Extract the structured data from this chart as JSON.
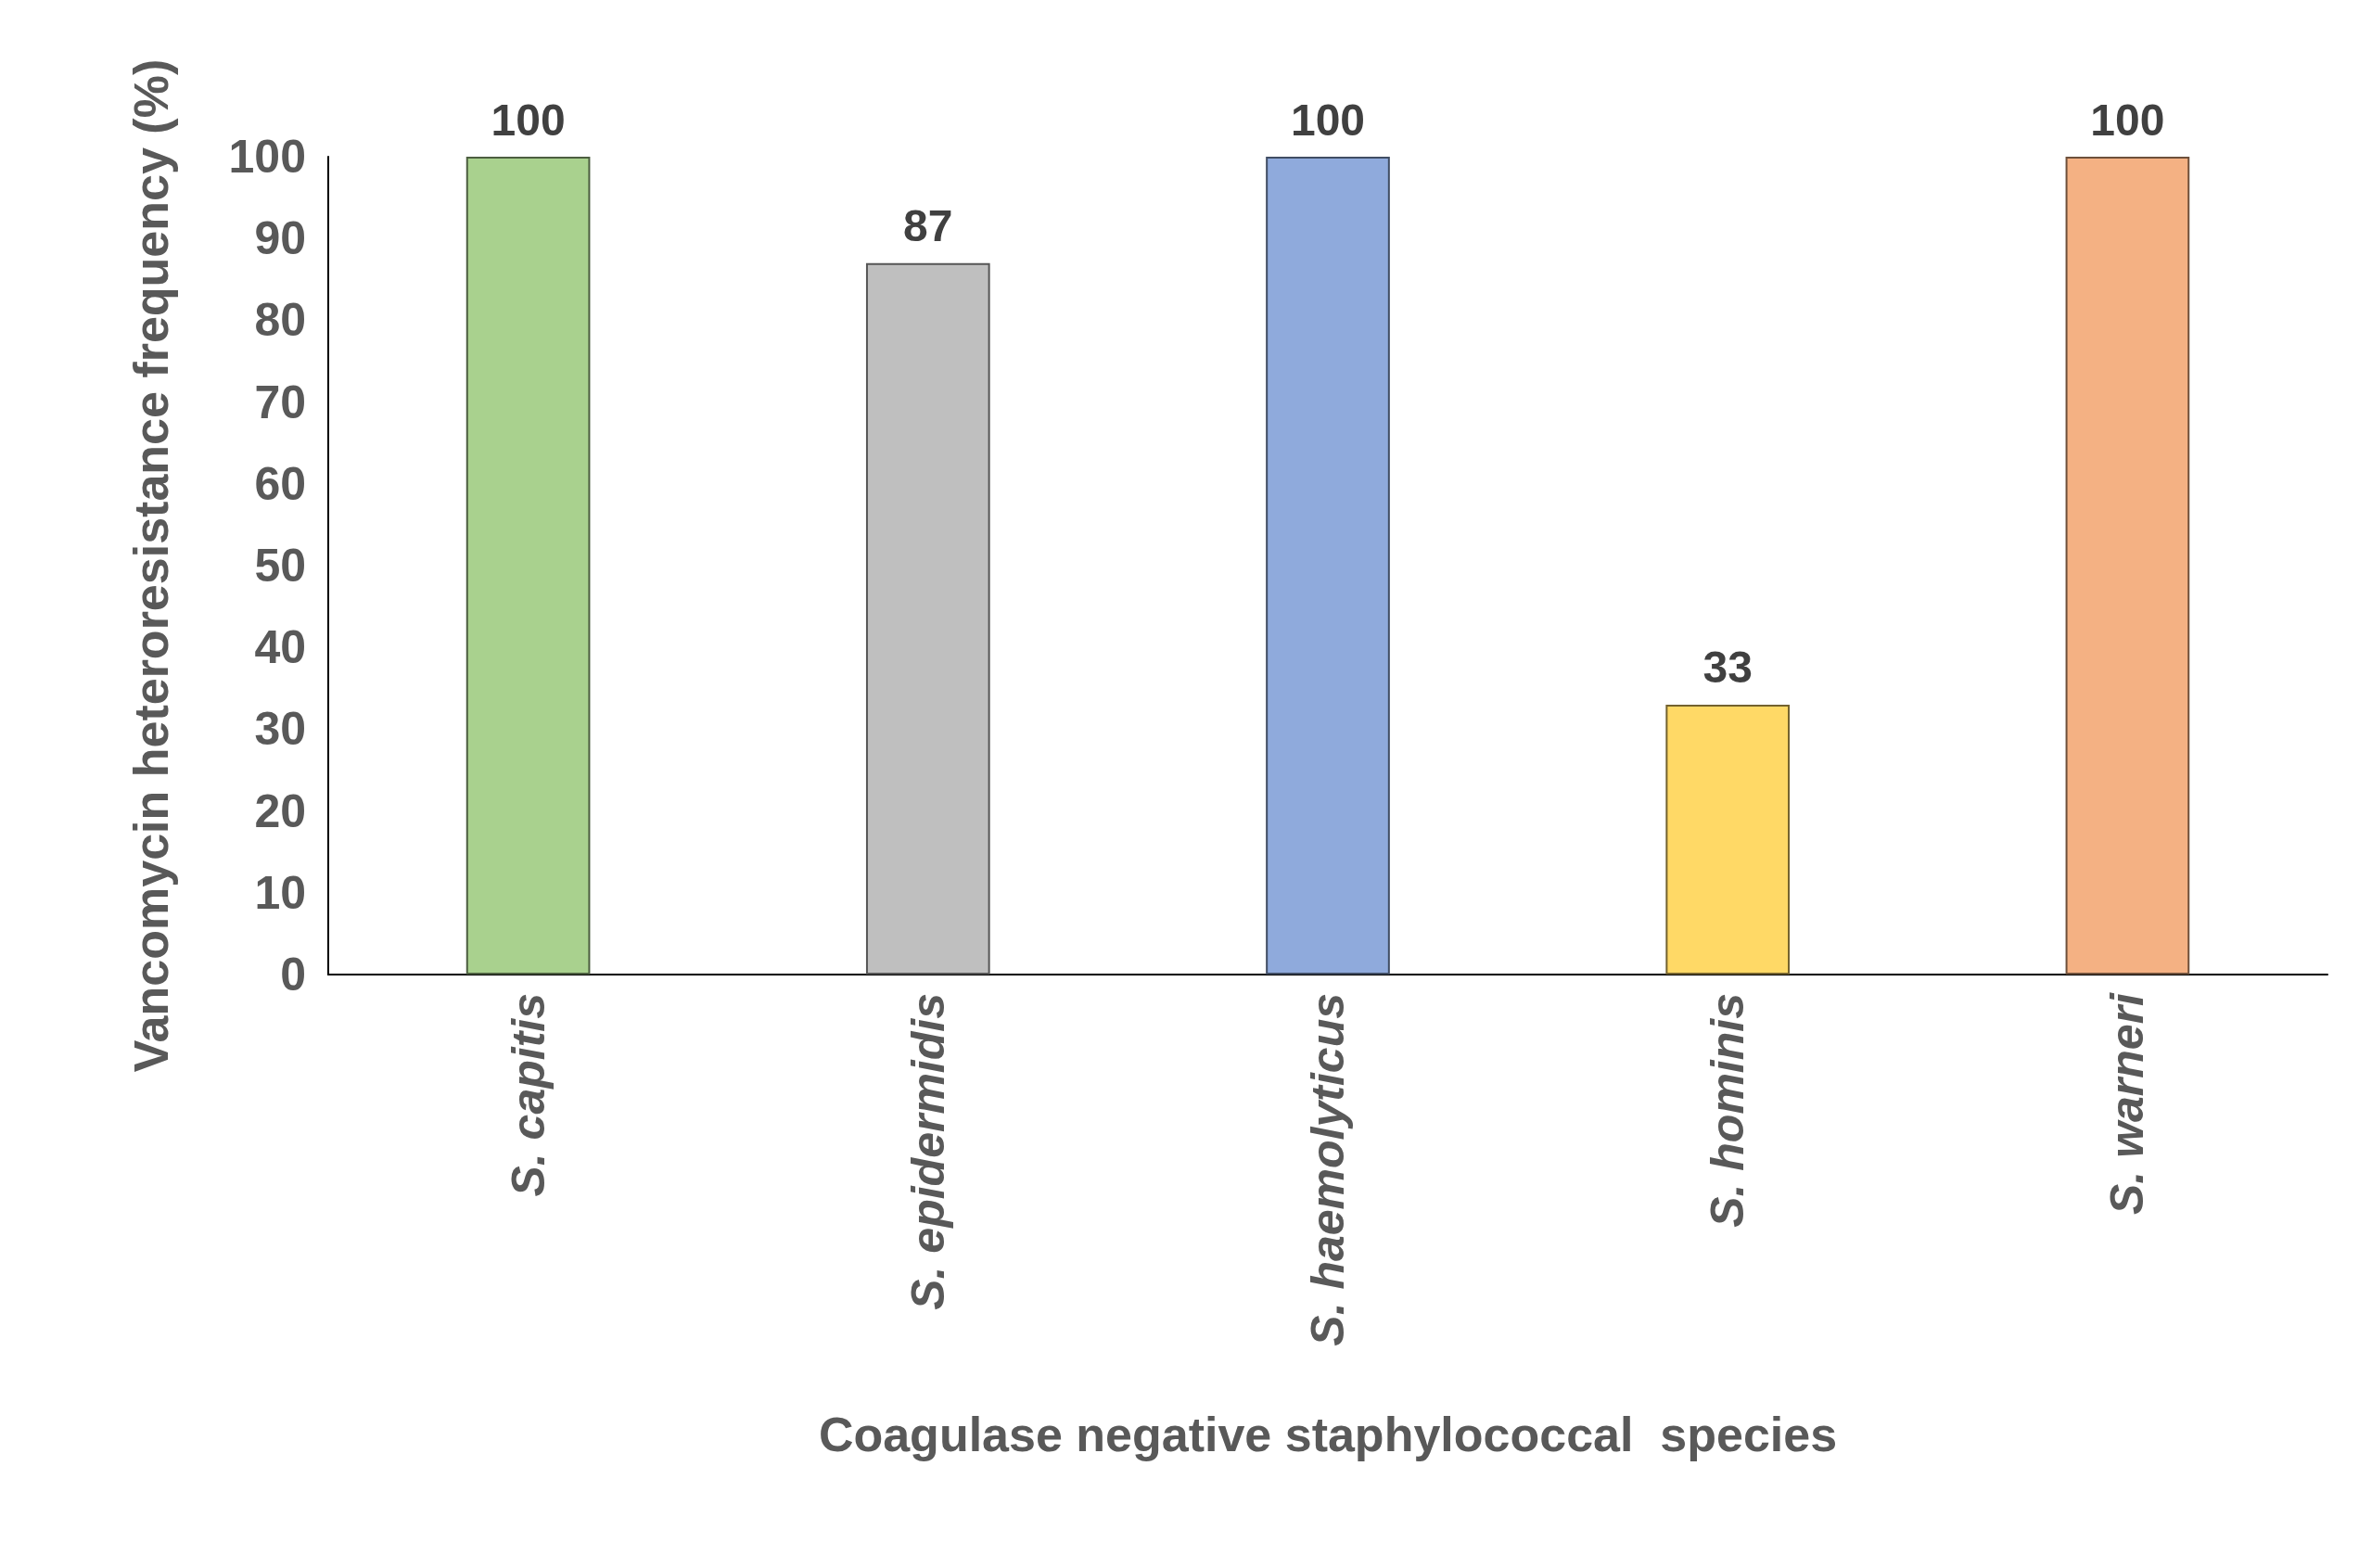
{
  "chart_data": {
    "type": "bar",
    "xlabel": "Coagulase negative staphylococcal  species",
    "ylabel": "Vancomycin heteroresistance frequency (%)",
    "categories": [
      "S. capitis",
      "S. epidermidis",
      "S. haemolyticus",
      "S. hominis",
      "S. warneri"
    ],
    "values": [
      100,
      87,
      100,
      33,
      100
    ],
    "colors": [
      "#a9d18e",
      "#bfbfbf",
      "#8faadc",
      "#ffd966",
      "#f4b183"
    ],
    "data_labels": true,
    "ylim": [
      0,
      100
    ],
    "yticks": [
      0,
      10,
      20,
      30,
      40,
      50,
      60,
      70,
      80,
      90,
      100
    ],
    "grid": false
  }
}
